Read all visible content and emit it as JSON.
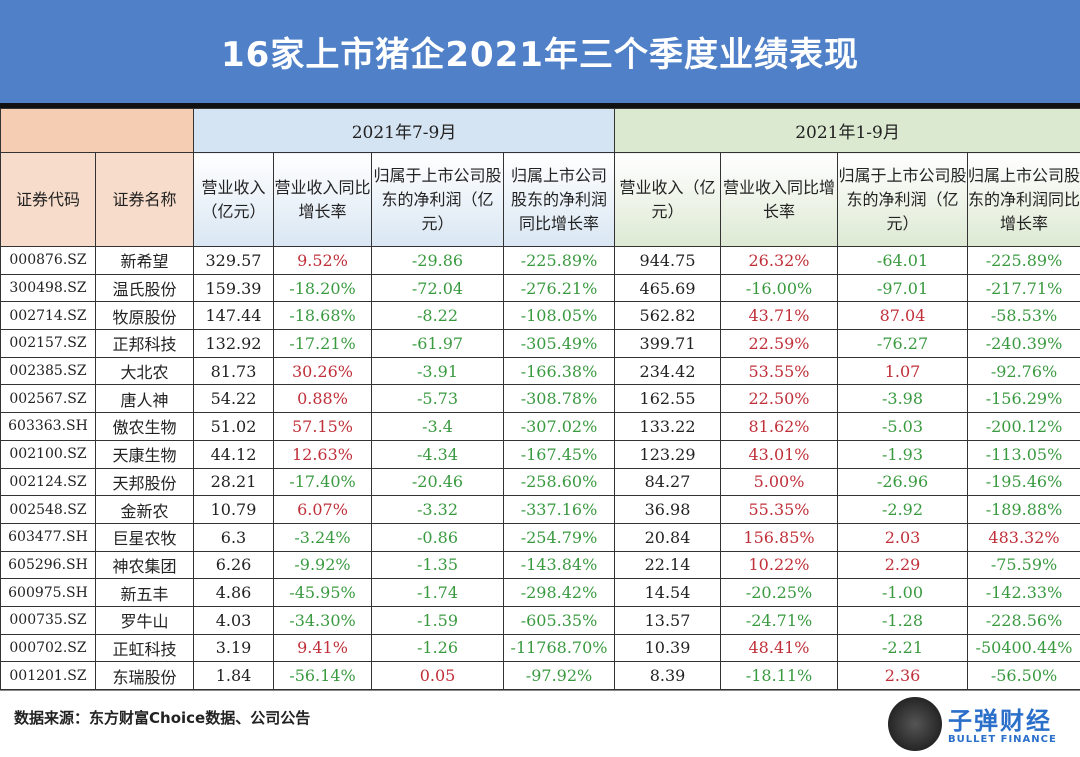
{
  "title": "16家上市猪企2021年三个季度业绩表现",
  "groups": {
    "q3": "2021年7-9月",
    "ytd": "2021年1-9月"
  },
  "headers": [
    "证券代码",
    "证券名称",
    "营业收入（亿元）",
    "营业收入同比增长率",
    "归属于上市公司股东的净利润（亿元）",
    "归属上市公司股东的净利润同比增长率",
    "营业收入（亿元）",
    "营业收入同比增长率",
    "归属于上市公司股东的净利润（亿元）",
    "归属上市公司股东的净利润同比增长率"
  ],
  "rows": [
    [
      "000876.SZ",
      "新希望",
      "329.57",
      "9.52%",
      "-29.86",
      "-225.89%",
      "944.75",
      "26.32%",
      "-64.01",
      "-225.89%"
    ],
    [
      "300498.SZ",
      "温氏股份",
      "159.39",
      "-18.20%",
      "-72.04",
      "-276.21%",
      "465.69",
      "-16.00%",
      "-97.01",
      "-217.71%"
    ],
    [
      "002714.SZ",
      "牧原股份",
      "147.44",
      "-18.68%",
      "-8.22",
      "-108.05%",
      "562.82",
      "43.71%",
      "87.04",
      "-58.53%"
    ],
    [
      "002157.SZ",
      "正邦科技",
      "132.92",
      "-17.21%",
      "-61.97",
      "-305.49%",
      "399.71",
      "22.59%",
      "-76.27",
      "-240.39%"
    ],
    [
      "002385.SZ",
      "大北农",
      "81.73",
      "30.26%",
      "-3.91",
      "-166.38%",
      "234.42",
      "53.55%",
      "1.07",
      "-92.76%"
    ],
    [
      "002567.SZ",
      "唐人神",
      "54.22",
      "0.88%",
      "-5.73",
      "-308.78%",
      "162.55",
      "22.50%",
      "-3.98",
      "-156.29%"
    ],
    [
      "603363.SH",
      "傲农生物",
      "51.02",
      "57.15%",
      "-3.4",
      "-307.02%",
      "133.22",
      "81.62%",
      "-5.03",
      "-200.12%"
    ],
    [
      "002100.SZ",
      "天康生物",
      "44.12",
      "12.63%",
      "-4.34",
      "-167.45%",
      "123.29",
      "43.01%",
      "-1.93",
      "-113.05%"
    ],
    [
      "002124.SZ",
      "天邦股份",
      "28.21",
      "-17.40%",
      "-20.46",
      "-258.60%",
      "84.27",
      "5.00%",
      "-26.96",
      "-195.46%"
    ],
    [
      "002548.SZ",
      "金新农",
      "10.79",
      "6.07%",
      "-3.32",
      "-337.16%",
      "36.98",
      "55.35%",
      "-2.92",
      "-189.88%"
    ],
    [
      "603477.SH",
      "巨星农牧",
      "6.3",
      "-3.24%",
      "-0.86",
      "-254.79%",
      "20.84",
      "156.85%",
      "2.03",
      "483.32%"
    ],
    [
      "605296.SH",
      "神农集团",
      "6.26",
      "-9.92%",
      "-1.35",
      "-143.84%",
      "22.14",
      "10.22%",
      "2.29",
      "-75.59%"
    ],
    [
      "600975.SH",
      "新五丰",
      "4.86",
      "-45.95%",
      "-1.74",
      "-298.42%",
      "14.54",
      "-20.25%",
      "-1.00",
      "-142.33%"
    ],
    [
      "000735.SZ",
      "罗牛山",
      "4.03",
      "-34.30%",
      "-1.59",
      "-605.35%",
      "13.57",
      "-24.71%",
      "-1.28",
      "-228.56%"
    ],
    [
      "000702.SZ",
      "正虹科技",
      "3.19",
      "9.41%",
      "-1.26",
      "-11768.70%",
      "10.39",
      "48.41%",
      "-2.21",
      "-50400.44%"
    ],
    [
      "001201.SZ",
      "东瑞股份",
      "1.84",
      "-56.14%",
      "0.05",
      "-97.92%",
      "8.39",
      "-18.11%",
      "2.36",
      "-56.50%"
    ]
  ],
  "footer": {
    "source": "数据来源：东方财富Choice数据、公司公告",
    "brand_cn": "子弹财经",
    "brand_en": "BULLET FINANCE",
    "logo_text": "子弹财经"
  },
  "colors": {
    "title_bg": "#4f80c8",
    "positive": "#c0303a",
    "negative": "#3a9a40"
  }
}
